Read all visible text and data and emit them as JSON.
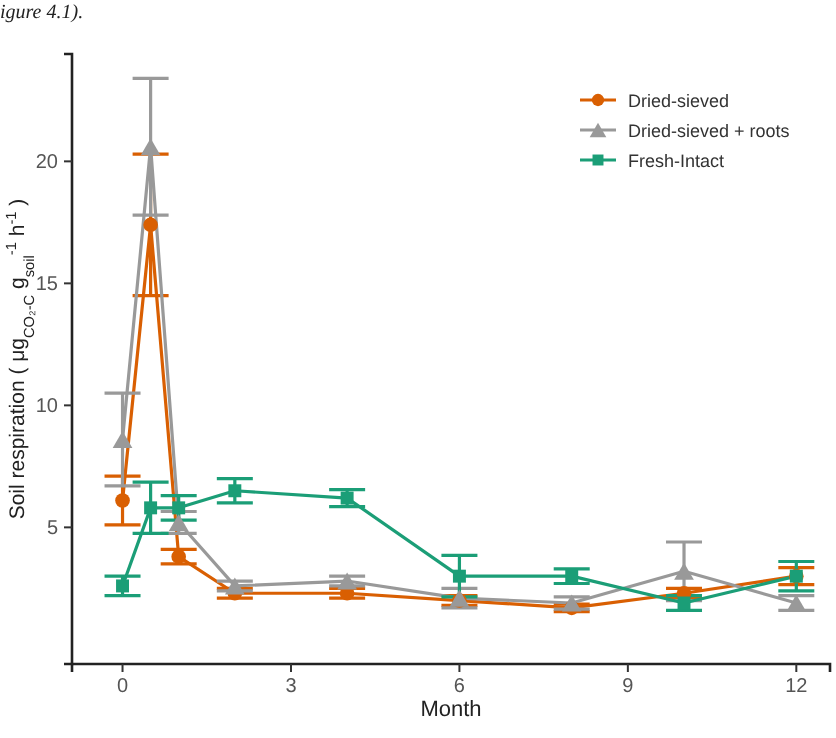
{
  "chart_data": {
    "type": "line",
    "xlabel": "Month",
    "ylabel": "Soil respiration ( μg$_{CO₂-C}$ g$_{soil}$$^{-1}$ h$^{-1}$ )",
    "annotations": [
      "igure 4.1)."
    ],
    "x": [
      0,
      0.5,
      1,
      2,
      4,
      6,
      8,
      10,
      12
    ],
    "xlim": [
      -0.9,
      12.6
    ],
    "xticks": [
      0,
      3,
      6,
      9,
      12
    ],
    "ylim": [
      -0.6,
      24.4
    ],
    "yticks": [
      5,
      10,
      15,
      20
    ],
    "grid": false,
    "legend": "top right",
    "line_style": "solid",
    "series": [
      {
        "name": "Dried-sieved",
        "color": "#d95f02",
        "marker": "circle",
        "values": [
          6.1,
          17.4,
          3.8,
          2.3,
          2.3,
          2.0,
          1.7,
          2.3,
          3.0
        ],
        "errors": [
          1.0,
          2.9,
          0.3,
          0.2,
          0.2,
          0.2,
          0.15,
          0.2,
          0.35
        ]
      },
      {
        "name": "Dried-sieved + roots",
        "color": "#999999",
        "marker": "triangle",
        "values": [
          8.6,
          20.6,
          5.2,
          2.6,
          2.8,
          2.1,
          1.9,
          3.2,
          1.9
        ],
        "errors": [
          1.9,
          2.8,
          0.45,
          0.2,
          0.2,
          0.4,
          0.25,
          1.2,
          0.3
        ]
      },
      {
        "name": "Fresh-Intact",
        "color": "#1b9e77",
        "marker": "square",
        "values": [
          2.6,
          5.8,
          5.8,
          6.5,
          6.2,
          3.0,
          3.0,
          1.9,
          3.0
        ],
        "errors": [
          0.4,
          1.05,
          0.5,
          0.5,
          0.35,
          0.85,
          0.3,
          0.3,
          0.6
        ]
      }
    ]
  }
}
